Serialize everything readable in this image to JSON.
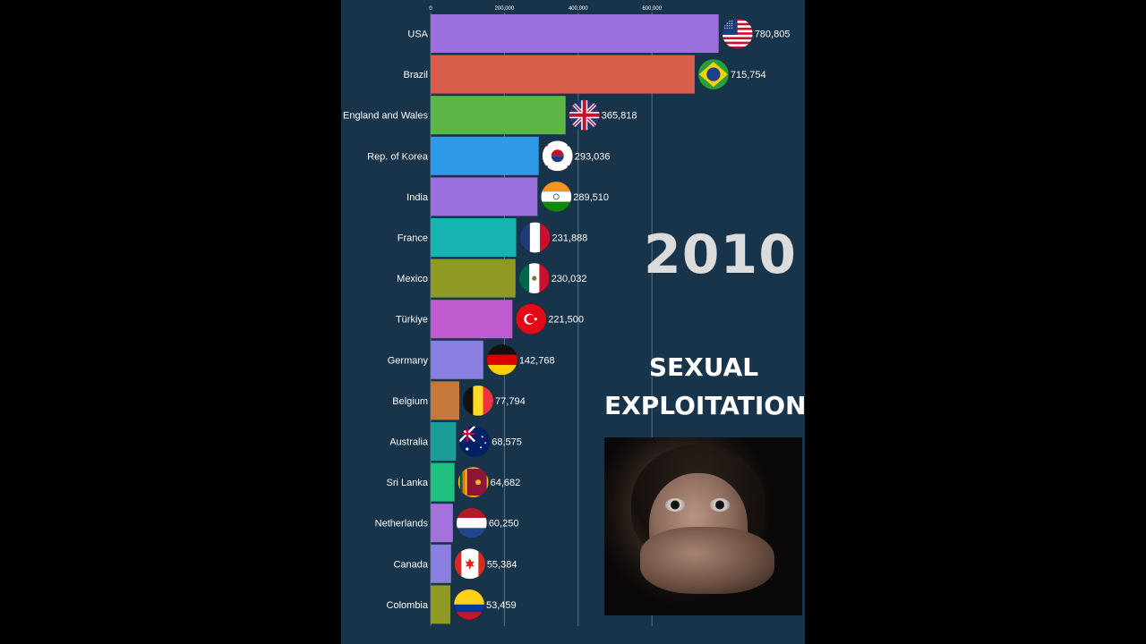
{
  "chart_data": {
    "type": "bar",
    "orientation": "horizontal",
    "categories": [
      "USA",
      "Brazil",
      "England and Wales",
      "Rep. of Korea",
      "India",
      "France",
      "Mexico",
      "Türkiye",
      "Germany",
      "Belgium",
      "Australia",
      "Sri Lanka",
      "Netherlands",
      "Canada",
      "Colombia"
    ],
    "values": [
      780805,
      715754,
      365818,
      293036,
      289510,
      231888,
      230032,
      221500,
      142768,
      77794,
      68575,
      64682,
      60250,
      55384,
      53459
    ],
    "value_labels": [
      "780,805",
      "715,754",
      "365,818",
      "293,036",
      "289,510",
      "231,888",
      "230,032",
      "221,500",
      "142,768",
      "77,794",
      "68,575",
      "64,682",
      "60,250",
      "55,384",
      "53,459"
    ],
    "bar_colors": [
      "#9b6fdc",
      "#d95f4d",
      "#5db548",
      "#2f9ae8",
      "#9b6fdc",
      "#16b3b3",
      "#8f9a25",
      "#c05ccf",
      "#8a7fe0",
      "#c4783b",
      "#1a9c98",
      "#1fc07e",
      "#a472dc",
      "#8a7fe0",
      "#8f9a25"
    ],
    "xticks": [
      0,
      200000,
      400000,
      600000
    ],
    "xtick_labels": [
      "0",
      "200,000",
      "400,000",
      "600,000"
    ],
    "xlim": [
      0,
      800000
    ],
    "grid": true,
    "flags": [
      "us-flag-icon",
      "br-flag-icon",
      "gb-flag-icon",
      "kr-flag-icon",
      "in-flag-icon",
      "fr-flag-icon",
      "mx-flag-icon",
      "tr-flag-icon",
      "de-flag-icon",
      "be-flag-icon",
      "au-flag-icon",
      "lk-flag-icon",
      "nl-flag-icon",
      "ca-flag-icon",
      "co-flag-icon"
    ]
  },
  "year": "2010",
  "title_line1": "SEXUAL",
  "title_line2": "EXPLOITATION",
  "colors": {
    "background": "#000000",
    "panel": "#17344a",
    "year": "#dcdcdc",
    "text": "#ffffff"
  }
}
